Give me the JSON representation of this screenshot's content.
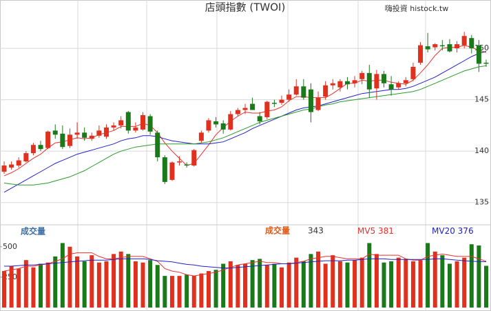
{
  "header": {
    "title": "店頭指數 (TWOI)",
    "brand": "嗨投資 histock.tw"
  },
  "chart_data": [
    {
      "type": "candlestick",
      "up_color": "#e0301e",
      "down_color": "#1a7a1a",
      "ylim": [
        132.9,
        154.7
      ],
      "yticks": [
        135,
        140,
        145,
        150
      ],
      "grid": true,
      "open": [
        138.0,
        138.4,
        138.6,
        139.0,
        139.8,
        140.6,
        140.3,
        142.0,
        141.7,
        140.5,
        141.6,
        141.8,
        141.2,
        141.5,
        141.4,
        142.3,
        142.5,
        143.8,
        142.0,
        142.1,
        143.4,
        141.8,
        139.4,
        137.2,
        138.9,
        138.7,
        138.6,
        141.0,
        142.0,
        142.9,
        142.7,
        142.1,
        143.6,
        144.0,
        144.6,
        143.4,
        143.3,
        144.7,
        144.7,
        145.0,
        145.5,
        146.3,
        146.0,
        144.0,
        145.3,
        146.4,
        146.2,
        146.8,
        146.6,
        147.0,
        147.6,
        146.1,
        147.5,
        146.5,
        146.2,
        146.6,
        147.0,
        148.6,
        150.2,
        150.1,
        150.3,
        150.4,
        150.0,
        150.3,
        151.0,
        150.3,
        148.6
      ],
      "high": [
        139.0,
        139.0,
        139.4,
        140.0,
        140.8,
        141.0,
        142.0,
        142.6,
        142.5,
        142.2,
        142.8,
        142.3,
        141.8,
        142.5,
        142.6,
        142.8,
        143.4,
        143.9,
        142.8,
        143.8,
        143.6,
        142.0,
        139.6,
        139.0,
        139.5,
        138.9,
        140.2,
        142.0,
        143.2,
        143.3,
        143.0,
        143.9,
        144.2,
        144.6,
        145.2,
        143.8,
        144.9,
        145.0,
        145.4,
        146.0,
        147.0,
        147.0,
        146.6,
        145.8,
        146.8,
        147.0,
        147.0,
        147.2,
        147.3,
        147.8,
        148.4,
        147.9,
        147.8,
        147.3,
        146.8,
        147.2,
        148.6,
        150.6,
        151.5,
        150.5,
        150.8,
        150.9,
        150.7,
        151.6,
        151.3,
        150.8,
        148.9
      ],
      "low": [
        137.8,
        138.2,
        138.4,
        138.9,
        139.6,
        140.0,
        140.2,
        141.2,
        140.2,
        140.3,
        141.2,
        141.0,
        141.0,
        141.3,
        141.2,
        142.0,
        142.2,
        141.7,
        141.8,
        142.0,
        141.6,
        139.0,
        136.8,
        137.1,
        138.6,
        138.4,
        138.5,
        140.8,
        141.8,
        142.3,
        141.7,
        142.0,
        143.4,
        143.6,
        144.0,
        142.6,
        143.1,
        144.3,
        144.5,
        144.8,
        145.4,
        145.0,
        142.8,
        143.9,
        145.0,
        146.0,
        145.8,
        146.0,
        146.2,
        146.5,
        145.2,
        145.0,
        146.2,
        145.4,
        146.0,
        146.3,
        146.8,
        148.4,
        149.6,
        149.8,
        149.8,
        149.6,
        149.6,
        150.0,
        149.5,
        147.7,
        148.2
      ],
      "close": [
        138.6,
        138.7,
        139.1,
        139.8,
        140.6,
        140.2,
        141.9,
        141.6,
        140.4,
        141.6,
        141.8,
        141.3,
        141.5,
        142.0,
        142.3,
        142.5,
        143.0,
        142.0,
        142.3,
        143.5,
        141.9,
        139.4,
        137.0,
        138.9,
        139.0,
        138.6,
        140.1,
        141.8,
        143.0,
        142.6,
        142.1,
        143.6,
        144.0,
        144.2,
        144.0,
        142.9,
        144.8,
        144.6,
        145.0,
        145.5,
        146.3,
        145.2,
        143.8,
        145.2,
        146.4,
        146.6,
        146.8,
        146.5,
        146.9,
        147.6,
        146.0,
        147.5,
        146.6,
        146.0,
        146.6,
        146.9,
        148.2,
        150.3,
        149.9,
        150.4,
        150.2,
        149.7,
        150.4,
        151.2,
        150.0,
        148.5,
        148.5
      ],
      "series": [
        {
          "color": "#e8302a",
          "values": [
            137.6,
            137.9,
            138.3,
            138.8,
            139.3,
            139.7,
            140.3,
            140.8,
            140.9,
            141.1,
            141.3,
            141.2,
            141.3,
            141.6,
            141.8,
            142.0,
            142.4,
            142.4,
            142.4,
            142.7,
            142.5,
            141.8,
            140.8,
            140.0,
            139.3,
            138.6,
            138.8,
            139.7,
            140.6,
            141.6,
            142.3,
            142.9,
            143.4,
            143.8,
            143.7,
            143.7,
            143.9,
            144.0,
            144.3,
            144.9,
            145.3,
            145.3,
            145.2,
            145.2,
            145.2,
            145.6,
            146.1,
            146.6,
            146.6,
            146.9,
            146.8,
            146.9,
            146.9,
            146.7,
            146.6,
            146.5,
            146.9,
            147.6,
            148.4,
            149.3,
            150.0,
            150.1,
            150.1,
            150.3,
            150.1,
            149.8,
            149.6
          ]
        },
        {
          "color": "#2020c8",
          "values": [
            136.0,
            136.4,
            136.8,
            137.2,
            137.6,
            138.0,
            138.4,
            138.8,
            139.1,
            139.4,
            139.7,
            139.9,
            140.1,
            140.3,
            140.5,
            140.7,
            141.0,
            141.2,
            141.3,
            141.5,
            141.5,
            141.4,
            141.2,
            141.0,
            140.9,
            140.8,
            140.7,
            140.7,
            140.7,
            140.8,
            140.9,
            141.2,
            141.5,
            141.8,
            142.2,
            142.5,
            142.8,
            143.1,
            143.4,
            143.7,
            144.0,
            144.2,
            144.3,
            144.4,
            144.6,
            144.8,
            145.0,
            145.2,
            145.4,
            145.6,
            145.7,
            145.8,
            145.9,
            146.0,
            146.0,
            146.1,
            146.3,
            146.6,
            146.9,
            147.2,
            147.6,
            148.0,
            148.4,
            148.8,
            149.2,
            149.5,
            149.7
          ]
        },
        {
          "color": "#2a9a2a",
          "values": [
            136.9,
            136.8,
            136.7,
            136.7,
            136.7,
            136.8,
            136.9,
            137.1,
            137.3,
            137.5,
            137.8,
            138.1,
            138.5,
            138.9,
            139.3,
            139.7,
            140.0,
            140.2,
            140.4,
            140.5,
            140.6,
            140.7,
            140.7,
            140.7,
            140.7,
            140.7,
            140.7,
            140.8,
            140.9,
            141.1,
            141.3,
            141.6,
            141.9,
            142.2,
            142.5,
            142.8,
            143.0,
            143.2,
            143.4,
            143.6,
            143.8,
            144.0,
            144.1,
            144.3,
            144.5,
            144.6,
            144.8,
            144.9,
            145.0,
            145.1,
            145.2,
            145.3,
            145.4,
            145.5,
            145.6,
            145.7,
            145.8,
            146.0,
            146.3,
            146.6,
            146.9,
            147.2,
            147.5,
            147.8,
            148.0,
            148.2,
            148.3
          ]
        }
      ]
    },
    {
      "type": "bar",
      "title": "成交量",
      "legend_label": "成交量",
      "legend_color": "#e05a1a",
      "ylim": [
        0,
        680
      ],
      "yticks": [
        250,
        500
      ],
      "values": [
        300,
        340,
        320,
        390,
        330,
        360,
        370,
        420,
        530,
        500,
        420,
        380,
        430,
        370,
        380,
        440,
        460,
        440,
        380,
        370,
        390,
        350,
        260,
        260,
        260,
        270,
        260,
        280,
        300,
        310,
        360,
        380,
        350,
        360,
        390,
        400,
        350,
        360,
        330,
        370,
        410,
        380,
        440,
        460,
        360,
        430,
        380,
        370,
        390,
        410,
        530,
        440,
        370,
        380,
        410,
        400,
        380,
        390,
        530,
        460,
        430,
        360,
        380,
        410,
        520,
        510,
        343
      ],
      "series": [
        {
          "name": "MV5",
          "color": "#e8302a",
          "values": [
            300,
            310,
            320,
            340,
            340,
            350,
            360,
            380,
            400,
            440,
            450,
            450,
            450,
            420,
            400,
            400,
            410,
            420,
            420,
            420,
            400,
            380,
            320,
            300,
            290,
            270,
            260,
            270,
            280,
            290,
            310,
            330,
            350,
            360,
            370,
            380,
            370,
            370,
            360,
            360,
            370,
            380,
            400,
            410,
            420,
            420,
            410,
            400,
            400,
            400,
            440,
            430,
            430,
            430,
            430,
            400,
            390,
            390,
            420,
            430,
            440,
            430,
            420,
            420,
            420,
            400,
            381
          ]
        },
        {
          "name": "MV20",
          "color": "#2020c8",
          "values": [
            340,
            340,
            345,
            350,
            350,
            355,
            360,
            365,
            370,
            375,
            380,
            385,
            390,
            390,
            390,
            395,
            400,
            400,
            400,
            400,
            395,
            385,
            380,
            375,
            365,
            355,
            350,
            340,
            335,
            330,
            325,
            325,
            330,
            335,
            340,
            345,
            350,
            355,
            360,
            360,
            365,
            370,
            375,
            380,
            385,
            385,
            385,
            390,
            390,
            395,
            400,
            400,
            400,
            395,
            395,
            395,
            395,
            395,
            395,
            400,
            400,
            395,
            390,
            385,
            380,
            378,
            376
          ]
        }
      ]
    }
  ]
}
